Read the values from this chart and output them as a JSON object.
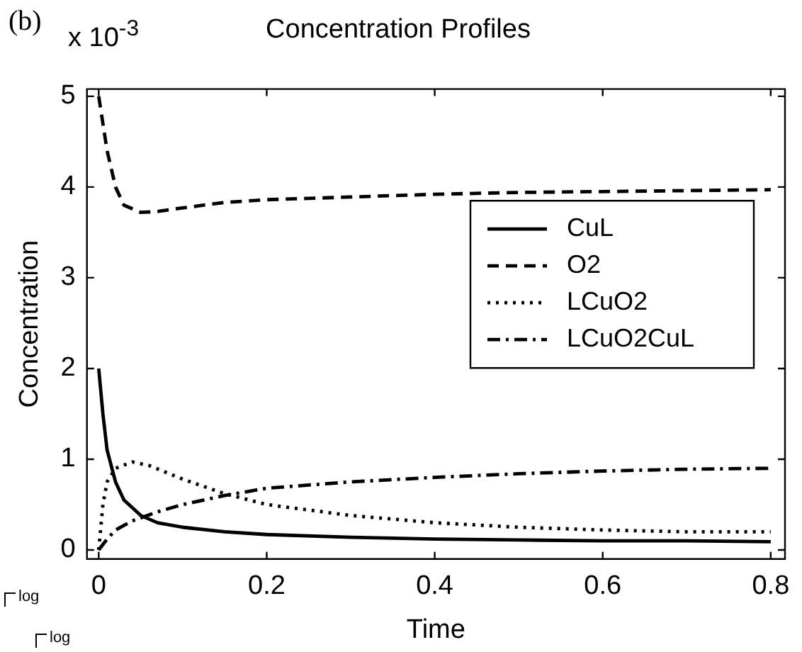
{
  "chart_data": {
    "type": "line",
    "title": "Concentration Profiles",
    "xlabel": "Time",
    "ylabel": "Concentration",
    "annotations": [
      "(b)",
      "x 10$^{-3}$",
      "log",
      "log"
    ],
    "xlim": [
      -0.014,
      0.817
    ],
    "xticks": [
      0,
      0.2,
      0.4,
      0.6,
      0.8
    ],
    "ylim": [
      -0.1,
      5.08
    ],
    "yticks": [
      0,
      1,
      2,
      3,
      4,
      5
    ],
    "grid": false,
    "legend": "right",
    "marker": "none",
    "series": [
      {
        "name": "CuL",
        "color": "#000000",
        "line_style": "solid",
        "x": [
          0,
          0.005,
          0.01,
          0.02,
          0.03,
          0.05,
          0.07,
          0.1,
          0.15,
          0.2,
          0.3,
          0.4,
          0.5,
          0.6,
          0.7,
          0.8
        ],
        "values": [
          2.0,
          1.5,
          1.1,
          0.75,
          0.55,
          0.38,
          0.3,
          0.25,
          0.2,
          0.17,
          0.14,
          0.12,
          0.11,
          0.1,
          0.1,
          0.09
        ]
      },
      {
        "name": "O2",
        "color": "#000000",
        "line_style": "dashed",
        "x": [
          0,
          0.005,
          0.01,
          0.02,
          0.03,
          0.05,
          0.07,
          0.1,
          0.15,
          0.2,
          0.3,
          0.4,
          0.5,
          0.6,
          0.7,
          0.8
        ],
        "values": [
          5.0,
          4.7,
          4.4,
          4.0,
          3.8,
          3.72,
          3.73,
          3.77,
          3.83,
          3.86,
          3.89,
          3.92,
          3.94,
          3.95,
          3.96,
          3.97
        ]
      },
      {
        "name": "LCuO2",
        "color": "#000000",
        "line_style": "dotted",
        "x": [
          0,
          0.005,
          0.01,
          0.02,
          0.04,
          0.06,
          0.1,
          0.15,
          0.2,
          0.3,
          0.4,
          0.5,
          0.6,
          0.7,
          0.8
        ],
        "values": [
          0,
          0.5,
          0.75,
          0.9,
          0.97,
          0.93,
          0.78,
          0.62,
          0.5,
          0.38,
          0.3,
          0.25,
          0.22,
          0.2,
          0.2
        ]
      },
      {
        "name": "LCuO2CuL",
        "color": "#000000",
        "line_style": "dashdot",
        "x": [
          0,
          0.01,
          0.02,
          0.04,
          0.07,
          0.1,
          0.15,
          0.2,
          0.3,
          0.4,
          0.5,
          0.6,
          0.7,
          0.8
        ],
        "values": [
          0,
          0.12,
          0.22,
          0.32,
          0.42,
          0.5,
          0.6,
          0.68,
          0.75,
          0.8,
          0.84,
          0.87,
          0.89,
          0.9
        ]
      }
    ]
  }
}
